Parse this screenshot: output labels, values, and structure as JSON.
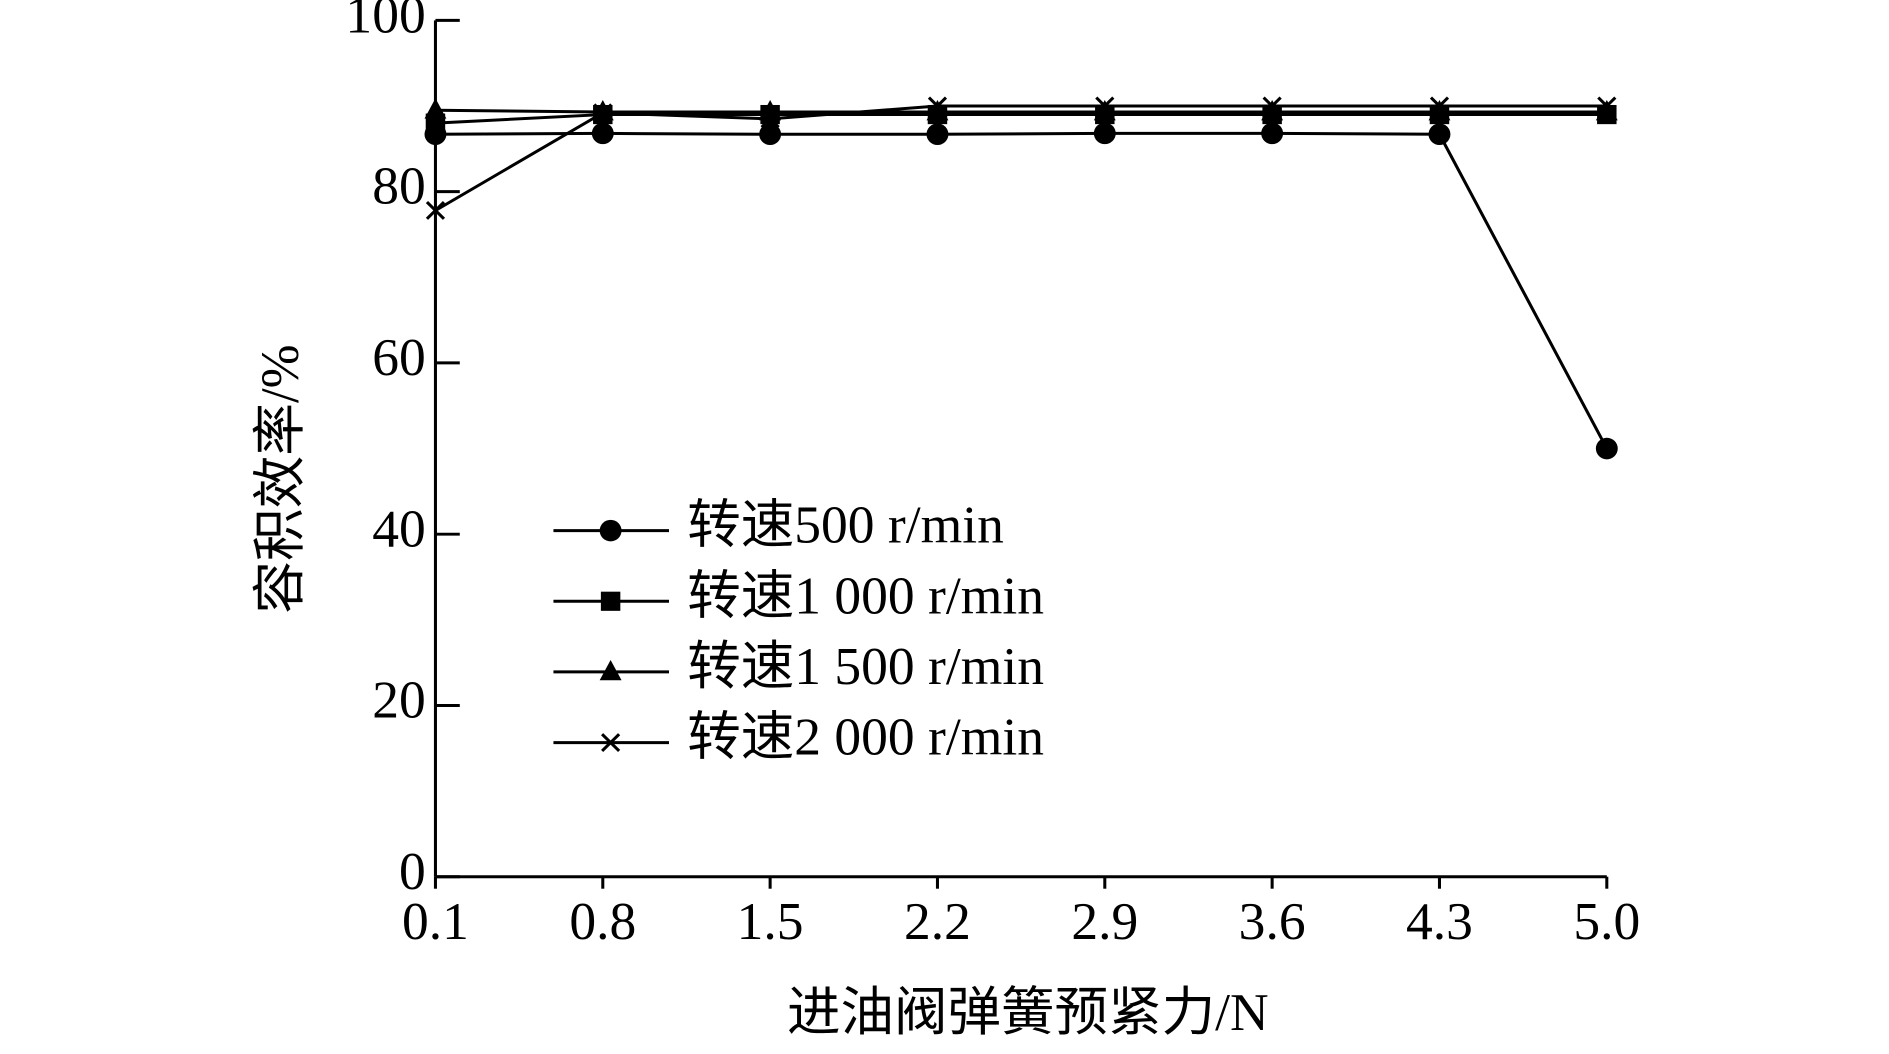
{
  "chart_data": {
    "type": "line",
    "x_label": "进油阀弹簧预紧力/N",
    "y_label": "容积效率/%",
    "categories": [
      "0.1",
      "0.8",
      "1.5",
      "2.2",
      "2.9",
      "3.6",
      "4.3",
      "5.0"
    ],
    "series": [
      {
        "name": "转速500 r/min",
        "color": "#000000",
        "marker": "circle",
        "values": [
          86.7,
          86.8,
          86.7,
          86.7,
          86.8,
          86.8,
          86.7,
          50
        ]
      },
      {
        "name": "转速1 000 r/min",
        "color": "#000000",
        "marker": "square",
        "values": [
          88,
          89,
          89,
          89,
          89,
          89,
          89,
          89
        ]
      },
      {
        "name": "转速1 500 r/min",
        "color": "#000000",
        "marker": "triangle",
        "values": [
          89.5,
          89.3,
          89.3,
          89.3,
          89.3,
          89.3,
          89.3,
          89.3
        ]
      },
      {
        "name": "转速2 000 r/min",
        "color": "#000000",
        "marker": "x",
        "values": [
          77.8,
          89.2,
          88.5,
          90,
          90,
          90,
          90,
          90
        ]
      }
    ],
    "ylim": [
      0,
      100
    ],
    "yticks": [
      0,
      20,
      40,
      60,
      80,
      100
    ]
  }
}
